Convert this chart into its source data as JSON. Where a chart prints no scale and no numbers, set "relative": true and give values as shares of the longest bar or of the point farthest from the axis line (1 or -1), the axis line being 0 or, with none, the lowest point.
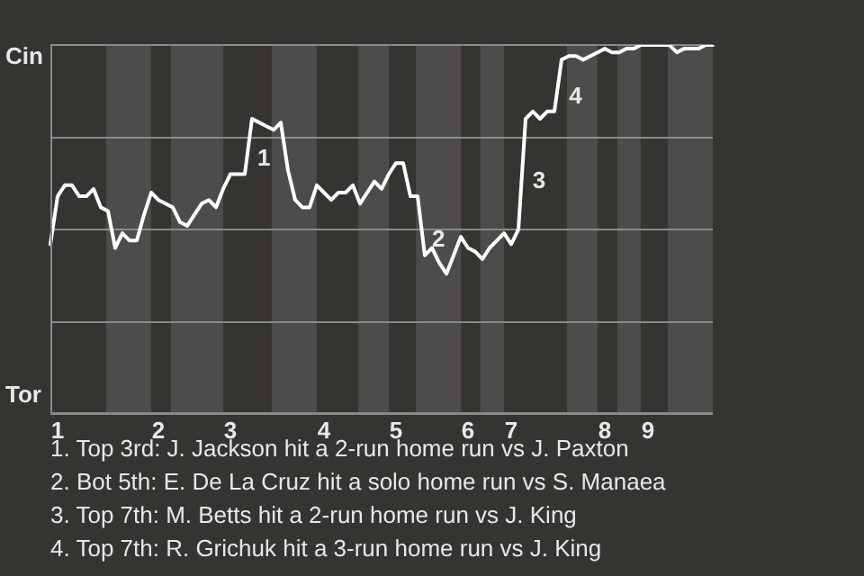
{
  "chart_data": {
    "type": "line",
    "relative": true,
    "categories": [
      null,
      "1",
      null,
      null,
      null,
      null,
      null,
      null,
      null,
      null,
      null,
      null,
      null,
      null,
      null,
      "2",
      null,
      null,
      null,
      null,
      null,
      null,
      null,
      null,
      null,
      "3",
      null,
      null,
      null,
      null,
      null,
      null,
      null,
      null,
      null,
      null,
      null,
      null,
      "4",
      null,
      null,
      null,
      null,
      null,
      null,
      null,
      null,
      null,
      "5",
      null,
      null,
      null,
      null,
      null,
      null,
      null,
      null,
      null,
      "6",
      null,
      null,
      null,
      null,
      null,
      "7",
      null,
      null,
      null,
      null,
      null,
      null,
      null,
      null,
      null,
      null,
      null,
      null,
      "8",
      null,
      null,
      null,
      null,
      null,
      "9",
      null,
      null,
      null,
      null,
      null,
      null,
      null,
      null,
      null
    ],
    "grid": "y",
    "legend": false,
    "marker": "none",
    "line_style": "solid",
    "series": [
      {
        "color": "#ffffff",
        "values": [
          0.46,
          0.59,
          0.62,
          0.62,
          0.59,
          0.59,
          0.61,
          0.56,
          0.55,
          0.45,
          0.49,
          0.47,
          0.47,
          0.54,
          0.6,
          0.58,
          0.57,
          0.56,
          0.52,
          0.51,
          0.54,
          0.57,
          0.58,
          0.56,
          0.61,
          0.65,
          0.65,
          0.65,
          0.8,
          0.79,
          0.78,
          0.77,
          0.79,
          0.66,
          0.58,
          0.56,
          0.56,
          0.62,
          0.6,
          0.58,
          0.6,
          0.6,
          0.62,
          0.57,
          0.6,
          0.63,
          0.61,
          0.65,
          0.68,
          0.68,
          0.59,
          0.59,
          0.43,
          0.45,
          0.41,
          0.38,
          0.43,
          0.48,
          0.45,
          0.44,
          0.42,
          0.45,
          0.47,
          0.49,
          0.46,
          0.5,
          0.8,
          0.82,
          0.8,
          0.82,
          0.82,
          0.96,
          0.97,
          0.97,
          0.96,
          0.97,
          0.98,
          0.99,
          0.98,
          0.98,
          0.99,
          0.99,
          1.0,
          1.0,
          1.0,
          1.0,
          1.0,
          0.98,
          0.99,
          0.99,
          0.99,
          1.0,
          1.0
        ]
      }
    ],
    "annotations": [
      "Cin",
      "Tor",
      "1",
      "2",
      "3",
      "4",
      "1. Top 3rd: J. Jackson hit a 2-run home run vs J. Paxton",
      "2. Bot 5th: E. De La Cruz hit a solo home run vs S. Manaea",
      "3. Top 7th: M. Betts hit a 2-run home run vs J. King",
      "4. Top 7th: R. Grichuk hit a 3-run home run vs J. King"
    ]
  }
}
